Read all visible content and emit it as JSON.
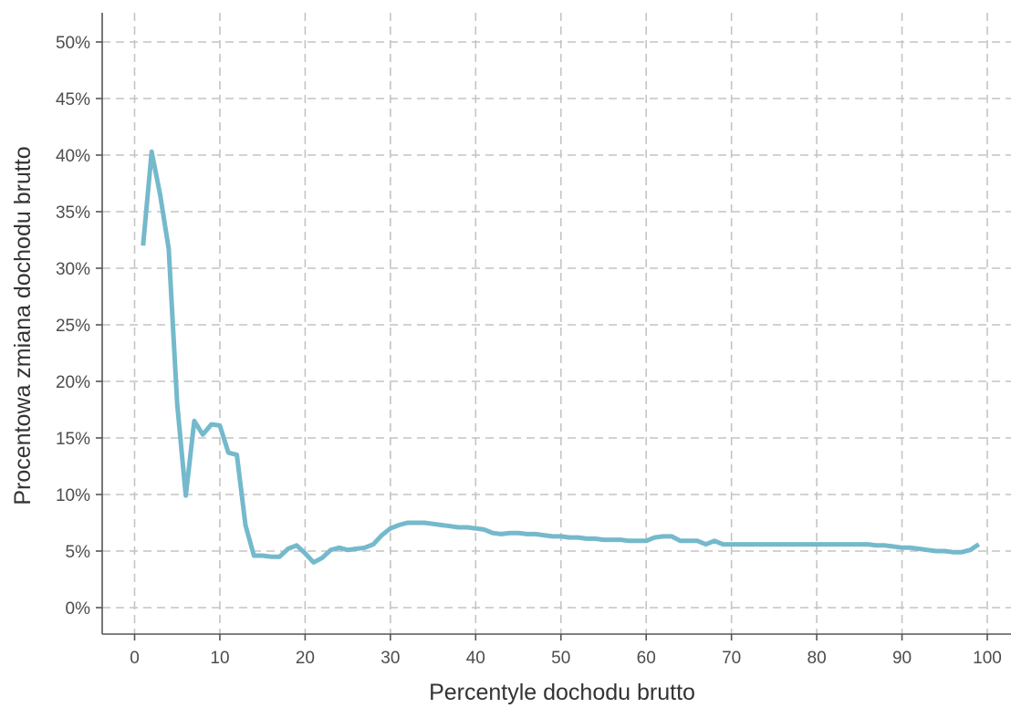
{
  "chart_data": {
    "type": "line",
    "title": "",
    "xlabel": "Percentyle dochodu brutto",
    "ylabel": "Procentowa zmiana dochodu brutto",
    "xlim": [
      0,
      100
    ],
    "ylim": [
      0,
      50
    ],
    "x_ticks": [
      0,
      10,
      20,
      30,
      40,
      50,
      60,
      70,
      80,
      90,
      100
    ],
    "x_tick_labels": [
      "0",
      "10",
      "20",
      "30",
      "40",
      "50",
      "60",
      "70",
      "80",
      "90",
      "100"
    ],
    "y_ticks": [
      0,
      5,
      10,
      15,
      20,
      25,
      30,
      35,
      40,
      45,
      50
    ],
    "y_tick_labels": [
      "0%",
      "5%",
      "10%",
      "15%",
      "20%",
      "25%",
      "30%",
      "35%",
      "40%",
      "45%",
      "50%"
    ],
    "grid": true,
    "series": [
      {
        "color": "#74b9cc",
        "x": [
          1,
          2,
          3,
          4,
          5,
          6,
          7,
          8,
          9,
          10,
          11,
          12,
          13,
          14,
          15,
          16,
          17,
          18,
          19,
          20,
          21,
          22,
          23,
          24,
          25,
          26,
          27,
          28,
          29,
          30,
          31,
          32,
          33,
          34,
          35,
          36,
          37,
          38,
          39,
          40,
          41,
          42,
          43,
          44,
          45,
          46,
          47,
          48,
          49,
          50,
          51,
          52,
          53,
          54,
          55,
          56,
          57,
          58,
          59,
          60,
          61,
          62,
          63,
          64,
          65,
          66,
          67,
          68,
          69,
          70,
          71,
          72,
          73,
          74,
          75,
          76,
          77,
          78,
          79,
          80,
          81,
          82,
          83,
          84,
          85,
          86,
          87,
          88,
          89,
          90,
          91,
          92,
          93,
          94,
          95,
          96,
          97,
          98,
          99
        ],
        "y": [
          32.0,
          40.3,
          36.5,
          31.7,
          18.0,
          9.9,
          16.5,
          15.3,
          16.2,
          16.1,
          13.7,
          13.5,
          7.3,
          4.6,
          4.6,
          4.5,
          4.5,
          5.2,
          5.5,
          4.8,
          4.0,
          4.4,
          5.1,
          5.3,
          5.1,
          5.2,
          5.3,
          5.6,
          6.4,
          7.0,
          7.3,
          7.5,
          7.5,
          7.5,
          7.4,
          7.3,
          7.2,
          7.1,
          7.1,
          7.0,
          6.9,
          6.6,
          6.5,
          6.6,
          6.6,
          6.5,
          6.5,
          6.4,
          6.3,
          6.3,
          6.2,
          6.2,
          6.1,
          6.1,
          6.0,
          6.0,
          6.0,
          5.9,
          5.9,
          5.9,
          6.2,
          6.3,
          6.3,
          5.9,
          5.9,
          5.9,
          5.6,
          5.9,
          5.6,
          5.6,
          5.6,
          5.6,
          5.6,
          5.6,
          5.6,
          5.6,
          5.6,
          5.6,
          5.6,
          5.6,
          5.6,
          5.6,
          5.6,
          5.6,
          5.6,
          5.6,
          5.5,
          5.5,
          5.4,
          5.3,
          5.3,
          5.2,
          5.1,
          5.0,
          5.0,
          4.9,
          4.9,
          5.1,
          5.6
        ]
      }
    ]
  }
}
